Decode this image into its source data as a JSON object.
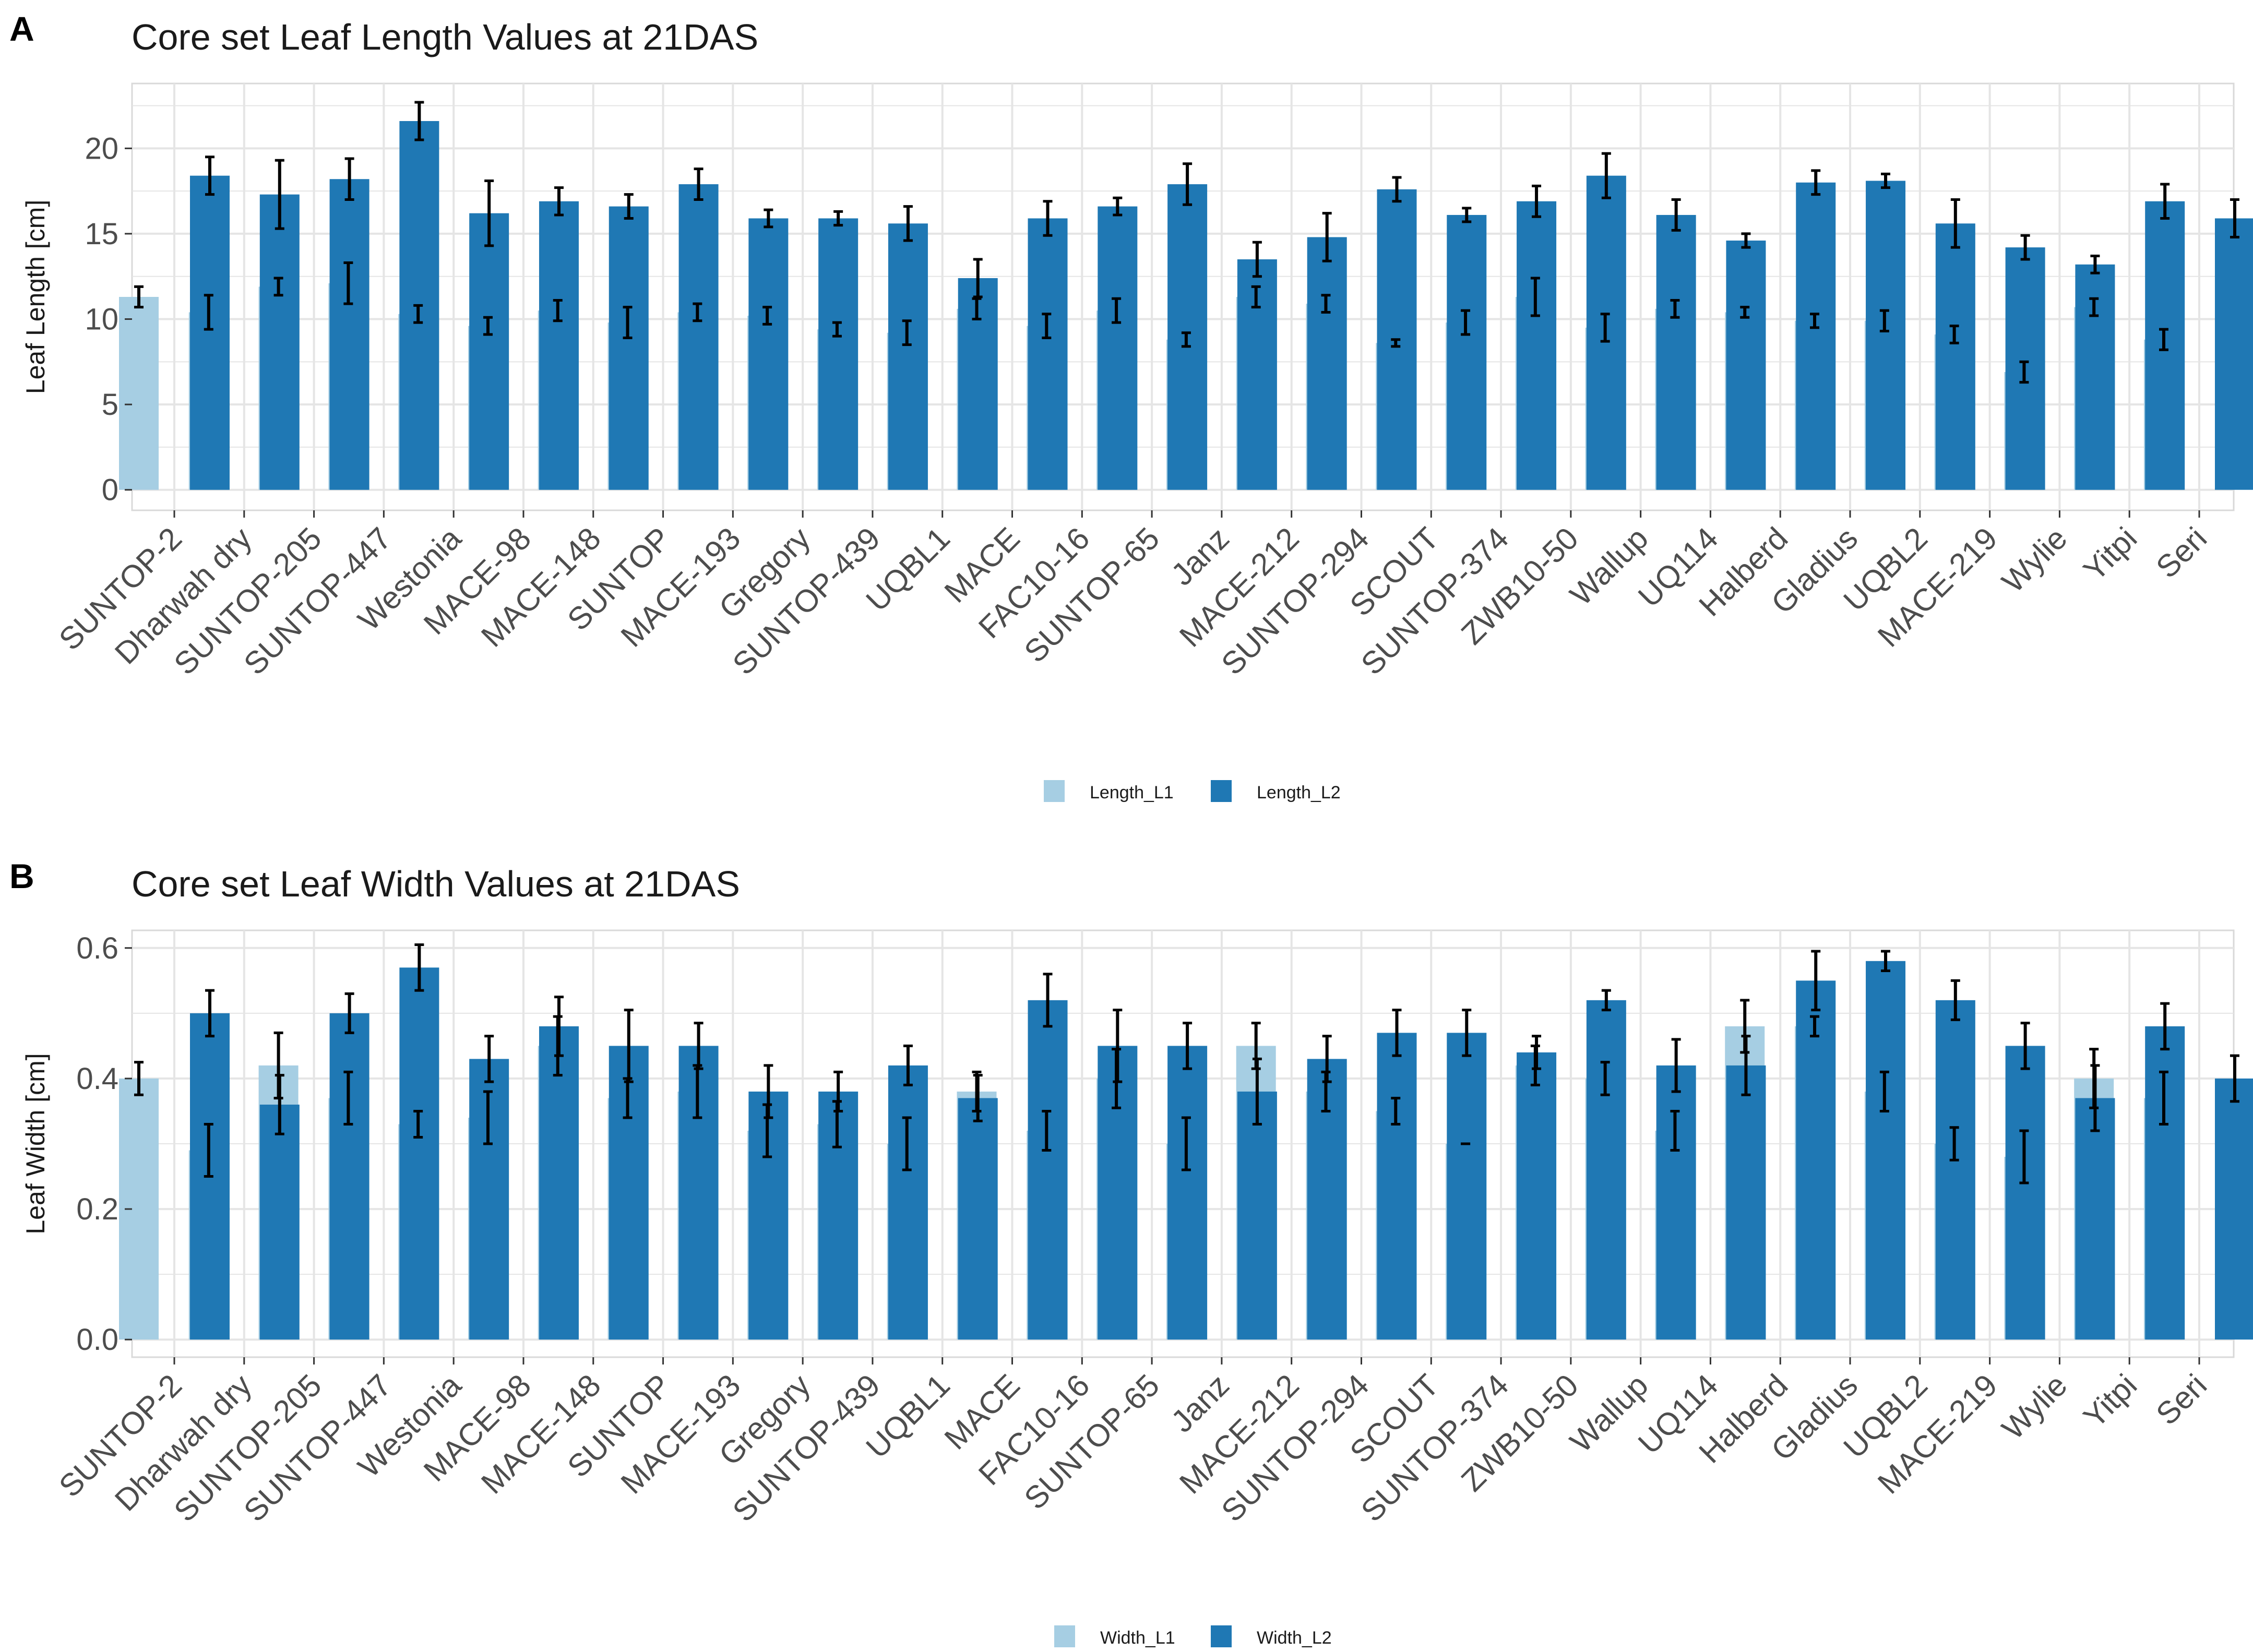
{
  "categories": [
    "SUNTOP-2",
    "Dharwah dry",
    "SUNTOP-205",
    "SUNTOP-447",
    "Westonia",
    "MACE-98",
    "MACE-148",
    "SUNTOP",
    "MACE-193",
    "Gregory",
    "SUNTOP-439",
    "UQBL1",
    "MACE",
    "FAC10-16",
    "SUNTOP-65",
    "Janz",
    "MACE-212",
    "SUNTOP-294",
    "SCOUT",
    "SUNTOP-374",
    "ZWB10-50",
    "Wallup",
    "UQ114",
    "Halberd",
    "Gladius",
    "UQBL2",
    "MACE-219",
    "Wylie",
    "Yitpi",
    "Seri"
  ],
  "colors": {
    "series1": "#a6cee3",
    "series2": "#1f78b4",
    "grid": "#e5e5e5",
    "panel_border": "#d9d9d9",
    "errorbar": "#000000"
  },
  "chart_data": [
    {
      "panel_label": "A",
      "type": "bar",
      "title": "Core set Leaf Length Values at 21DAS",
      "xlabel": "",
      "ylabel": "Leaf Length [cm]",
      "ylim": [
        -1.2,
        23.8
      ],
      "yticks": [
        0,
        5,
        10,
        15,
        20
      ],
      "ytick_labels": [
        "0",
        "5",
        "10",
        "15",
        "20"
      ],
      "grid": true,
      "legend_position": "bottom",
      "series": [
        {
          "name": "Length_L1",
          "values": [
            11.3,
            10.4,
            11.9,
            12.1,
            10.3,
            9.6,
            10.5,
            9.8,
            10.4,
            10.2,
            9.4,
            9.2,
            10.6,
            9.6,
            10.5,
            8.8,
            11.3,
            10.9,
            8.6,
            9.8,
            11.3,
            9.5,
            10.6,
            10.4,
            9.9,
            9.9,
            9.1,
            6.9,
            10.7,
            8.8
          ],
          "errors": [
            0.6,
            1.0,
            0.5,
            1.2,
            0.5,
            0.5,
            0.6,
            0.9,
            0.5,
            0.5,
            0.4,
            0.7,
            0.6,
            0.7,
            0.7,
            0.4,
            0.6,
            0.5,
            0.2,
            0.7,
            1.1,
            0.8,
            0.5,
            0.3,
            0.4,
            0.6,
            0.5,
            0.6,
            0.5,
            0.6
          ]
        },
        {
          "name": "Length_L2",
          "values": [
            18.4,
            17.3,
            18.2,
            21.6,
            16.2,
            16.9,
            16.6,
            17.9,
            15.9,
            15.9,
            15.6,
            12.4,
            15.9,
            16.6,
            17.9,
            13.5,
            14.8,
            17.6,
            16.1,
            16.9,
            18.4,
            16.1,
            14.6,
            18.0,
            18.1,
            15.6,
            14.2,
            13.2,
            16.9,
            15.9
          ],
          "errors": [
            1.1,
            2.0,
            1.2,
            1.1,
            1.9,
            0.8,
            0.7,
            0.9,
            0.5,
            0.4,
            1.0,
            1.1,
            1.0,
            0.5,
            1.2,
            1.0,
            1.4,
            0.7,
            0.4,
            0.9,
            1.3,
            0.9,
            0.4,
            0.7,
            0.4,
            1.4,
            0.7,
            0.5,
            1.0,
            1.1
          ]
        }
      ]
    },
    {
      "panel_label": "B",
      "type": "bar",
      "title": "Core set Leaf Width Values at 21DAS",
      "xlabel": "",
      "ylabel": "Leaf Width [cm]",
      "ylim": [
        -0.027,
        0.627
      ],
      "yticks": [
        0.0,
        0.2,
        0.4,
        0.6
      ],
      "ytick_labels": [
        "0.0",
        "0.2",
        "0.4",
        "0.6"
      ],
      "grid": true,
      "legend_position": "bottom",
      "series": [
        {
          "name": "Width_L1",
          "values": [
            0.4,
            0.29,
            0.42,
            0.37,
            0.33,
            0.34,
            0.45,
            0.37,
            0.38,
            0.32,
            0.33,
            0.3,
            0.38,
            0.32,
            0.4,
            0.3,
            0.45,
            0.38,
            0.35,
            0.3,
            0.42,
            0.4,
            0.32,
            0.48,
            0.48,
            0.38,
            0.3,
            0.28,
            0.4,
            0.37
          ],
          "errors": [
            0.025,
            0.04,
            0.05,
            0.04,
            0.02,
            0.04,
            0.045,
            0.03,
            0.04,
            0.04,
            0.035,
            0.04,
            0.03,
            0.03,
            0.045,
            0.04,
            0.035,
            0.03,
            0.02,
            0.0,
            0.03,
            0.025,
            0.03,
            0.04,
            0.015,
            0.03,
            0.025,
            0.04,
            0.045,
            0.04
          ]
        },
        {
          "name": "Width_L2",
          "values": [
            0.5,
            0.36,
            0.5,
            0.57,
            0.43,
            0.48,
            0.45,
            0.45,
            0.38,
            0.38,
            0.42,
            0.37,
            0.52,
            0.45,
            0.45,
            0.38,
            0.43,
            0.47,
            0.47,
            0.44,
            0.52,
            0.42,
            0.42,
            0.55,
            0.58,
            0.52,
            0.45,
            0.37,
            0.48,
            0.4
          ],
          "errors": [
            0.035,
            0.045,
            0.03,
            0.035,
            0.035,
            0.045,
            0.055,
            0.035,
            0.04,
            0.03,
            0.03,
            0.035,
            0.04,
            0.055,
            0.035,
            0.05,
            0.035,
            0.035,
            0.035,
            0.025,
            0.015,
            0.04,
            0.045,
            0.045,
            0.015,
            0.03,
            0.035,
            0.05,
            0.035,
            0.035
          ]
        }
      ]
    }
  ]
}
